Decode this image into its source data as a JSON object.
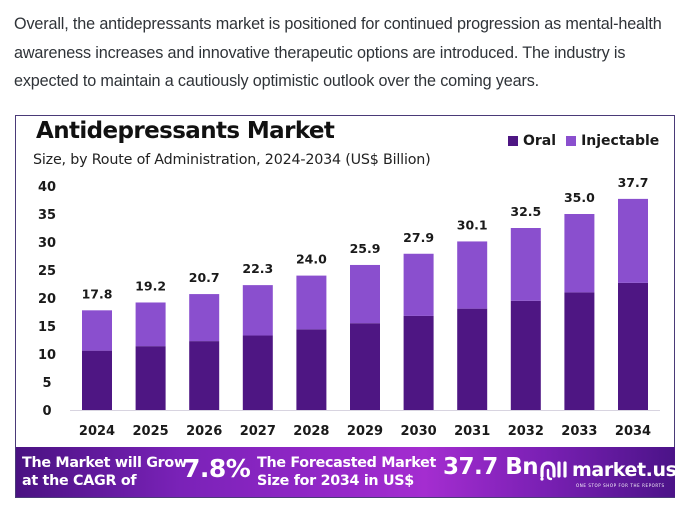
{
  "intro_text": "Overall, the antidepressants market is positioned for continued progression as mental-health awareness increases and innovative therapeutic options are introduced. The industry is expected to maintain a cautiously optimistic outlook over the coming years.",
  "colors": {
    "oral": "#4e1683",
    "injectable": "#8a4fce",
    "frame": "#4a3a78",
    "axis_line": "#d8d4e0"
  },
  "chart_data": {
    "type": "bar",
    "stacked": true,
    "title": "Antidepressants Market",
    "subtitle": "Size, by Route of Administration, 2024-2034 (US$ Billion)",
    "xlabel": "",
    "ylabel": "",
    "ylim": [
      0,
      40
    ],
    "yticks": [
      0,
      5,
      10,
      15,
      20,
      25,
      30,
      35,
      40
    ],
    "grid": false,
    "legend_position": "top-right",
    "categories": [
      "2024",
      "2025",
      "2026",
      "2027",
      "2028",
      "2029",
      "2030",
      "2031",
      "2032",
      "2033",
      "2034"
    ],
    "series": [
      {
        "name": "Oral",
        "values": [
          10.6,
          11.4,
          12.3,
          13.3,
          14.4,
          15.5,
          16.8,
          18.1,
          19.5,
          21.0,
          22.7
        ]
      },
      {
        "name": "Injectable",
        "values": [
          7.2,
          7.8,
          8.4,
          9.0,
          9.6,
          10.4,
          11.1,
          12.0,
          13.0,
          14.0,
          15.0
        ]
      }
    ],
    "totals": [
      17.8,
      19.2,
      20.7,
      22.3,
      24.0,
      25.9,
      27.9,
      30.1,
      32.5,
      35.0,
      37.7
    ],
    "total_labels": [
      "17.8",
      "19.2",
      "20.7",
      "22.3",
      "24.0",
      "25.9",
      "27.9",
      "30.1",
      "32.5",
      "35.0",
      "37.7"
    ]
  },
  "banner": {
    "cagr_text_line1": "The Market will Grow",
    "cagr_text_line2": "at the CAGR of",
    "cagr_value": "7.8%",
    "size_text_line1": "The Forecasted Market",
    "size_text_line2": "Size for 2034 in US$",
    "size_value": "37.7 Bn",
    "logo_name": "market.us",
    "logo_tagline": "ONE STOP SHOP FOR THE REPORTS",
    "logo_icon": "market-us-logo-icon"
  }
}
